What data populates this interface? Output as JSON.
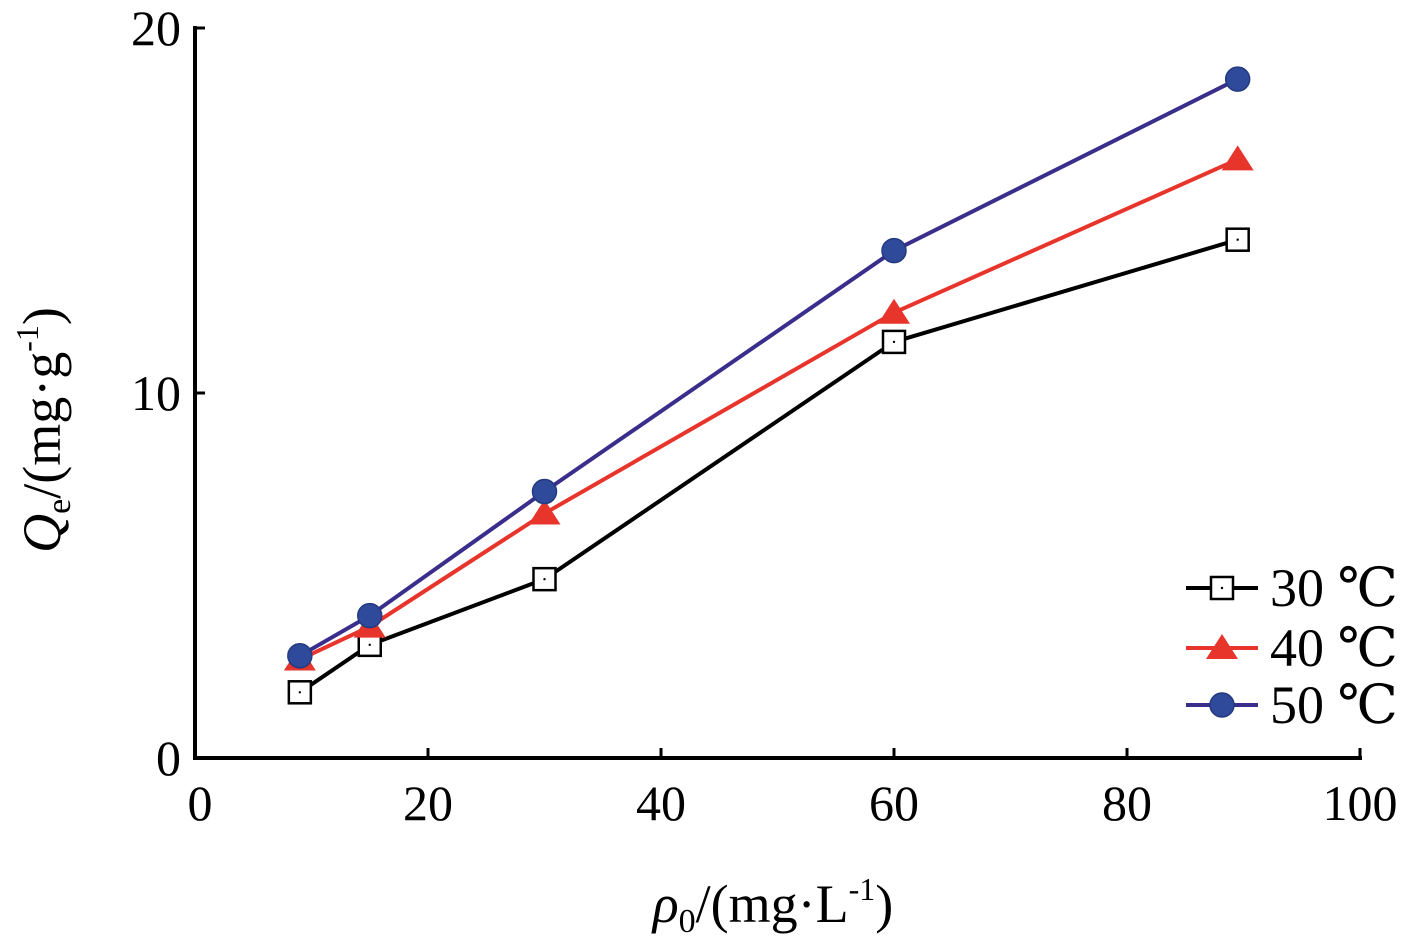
{
  "chart_data": {
    "type": "line",
    "xlabel": {
      "main": "ρ",
      "sub": "0",
      "rest": "/(mg·L",
      "sup": "-1",
      "end": ")"
    },
    "ylabel": {
      "main": "Q",
      "sub": "e",
      "rest": "/(mg·g",
      "sup": "-1",
      "end": ")"
    },
    "xlim": [
      0,
      100
    ],
    "ylim": [
      0,
      20
    ],
    "xticks": [
      0,
      20,
      40,
      60,
      80,
      100
    ],
    "yticks": [
      0,
      10,
      20
    ],
    "x_tick_labels": [
      "0",
      "20",
      "40",
      "60",
      "80",
      "100"
    ],
    "y_tick_labels": [
      "0",
      "10",
      "20"
    ],
    "grid": false,
    "legend_position": "bottom-right",
    "series": [
      {
        "name": "30 ℃",
        "color": "#000000",
        "marker": "square-open",
        "x": [
          9,
          15,
          30,
          60,
          89.5
        ],
        "y": [
          1.8,
          3.1,
          4.9,
          11.4,
          14.2
        ]
      },
      {
        "name": "40 ℃",
        "color": "#e8352b",
        "marker": "triangle",
        "x": [
          9,
          15,
          30,
          60,
          89.5
        ],
        "y": [
          2.7,
          3.6,
          6.7,
          12.2,
          16.4
        ]
      },
      {
        "name": "50 ℃",
        "color": "#3a2e8c",
        "marker_color": "#2f4a9a",
        "marker": "circle",
        "x": [
          9,
          15,
          30,
          60,
          89.5
        ],
        "y": [
          2.8,
          3.9,
          7.3,
          13.9,
          18.6
        ]
      }
    ]
  }
}
